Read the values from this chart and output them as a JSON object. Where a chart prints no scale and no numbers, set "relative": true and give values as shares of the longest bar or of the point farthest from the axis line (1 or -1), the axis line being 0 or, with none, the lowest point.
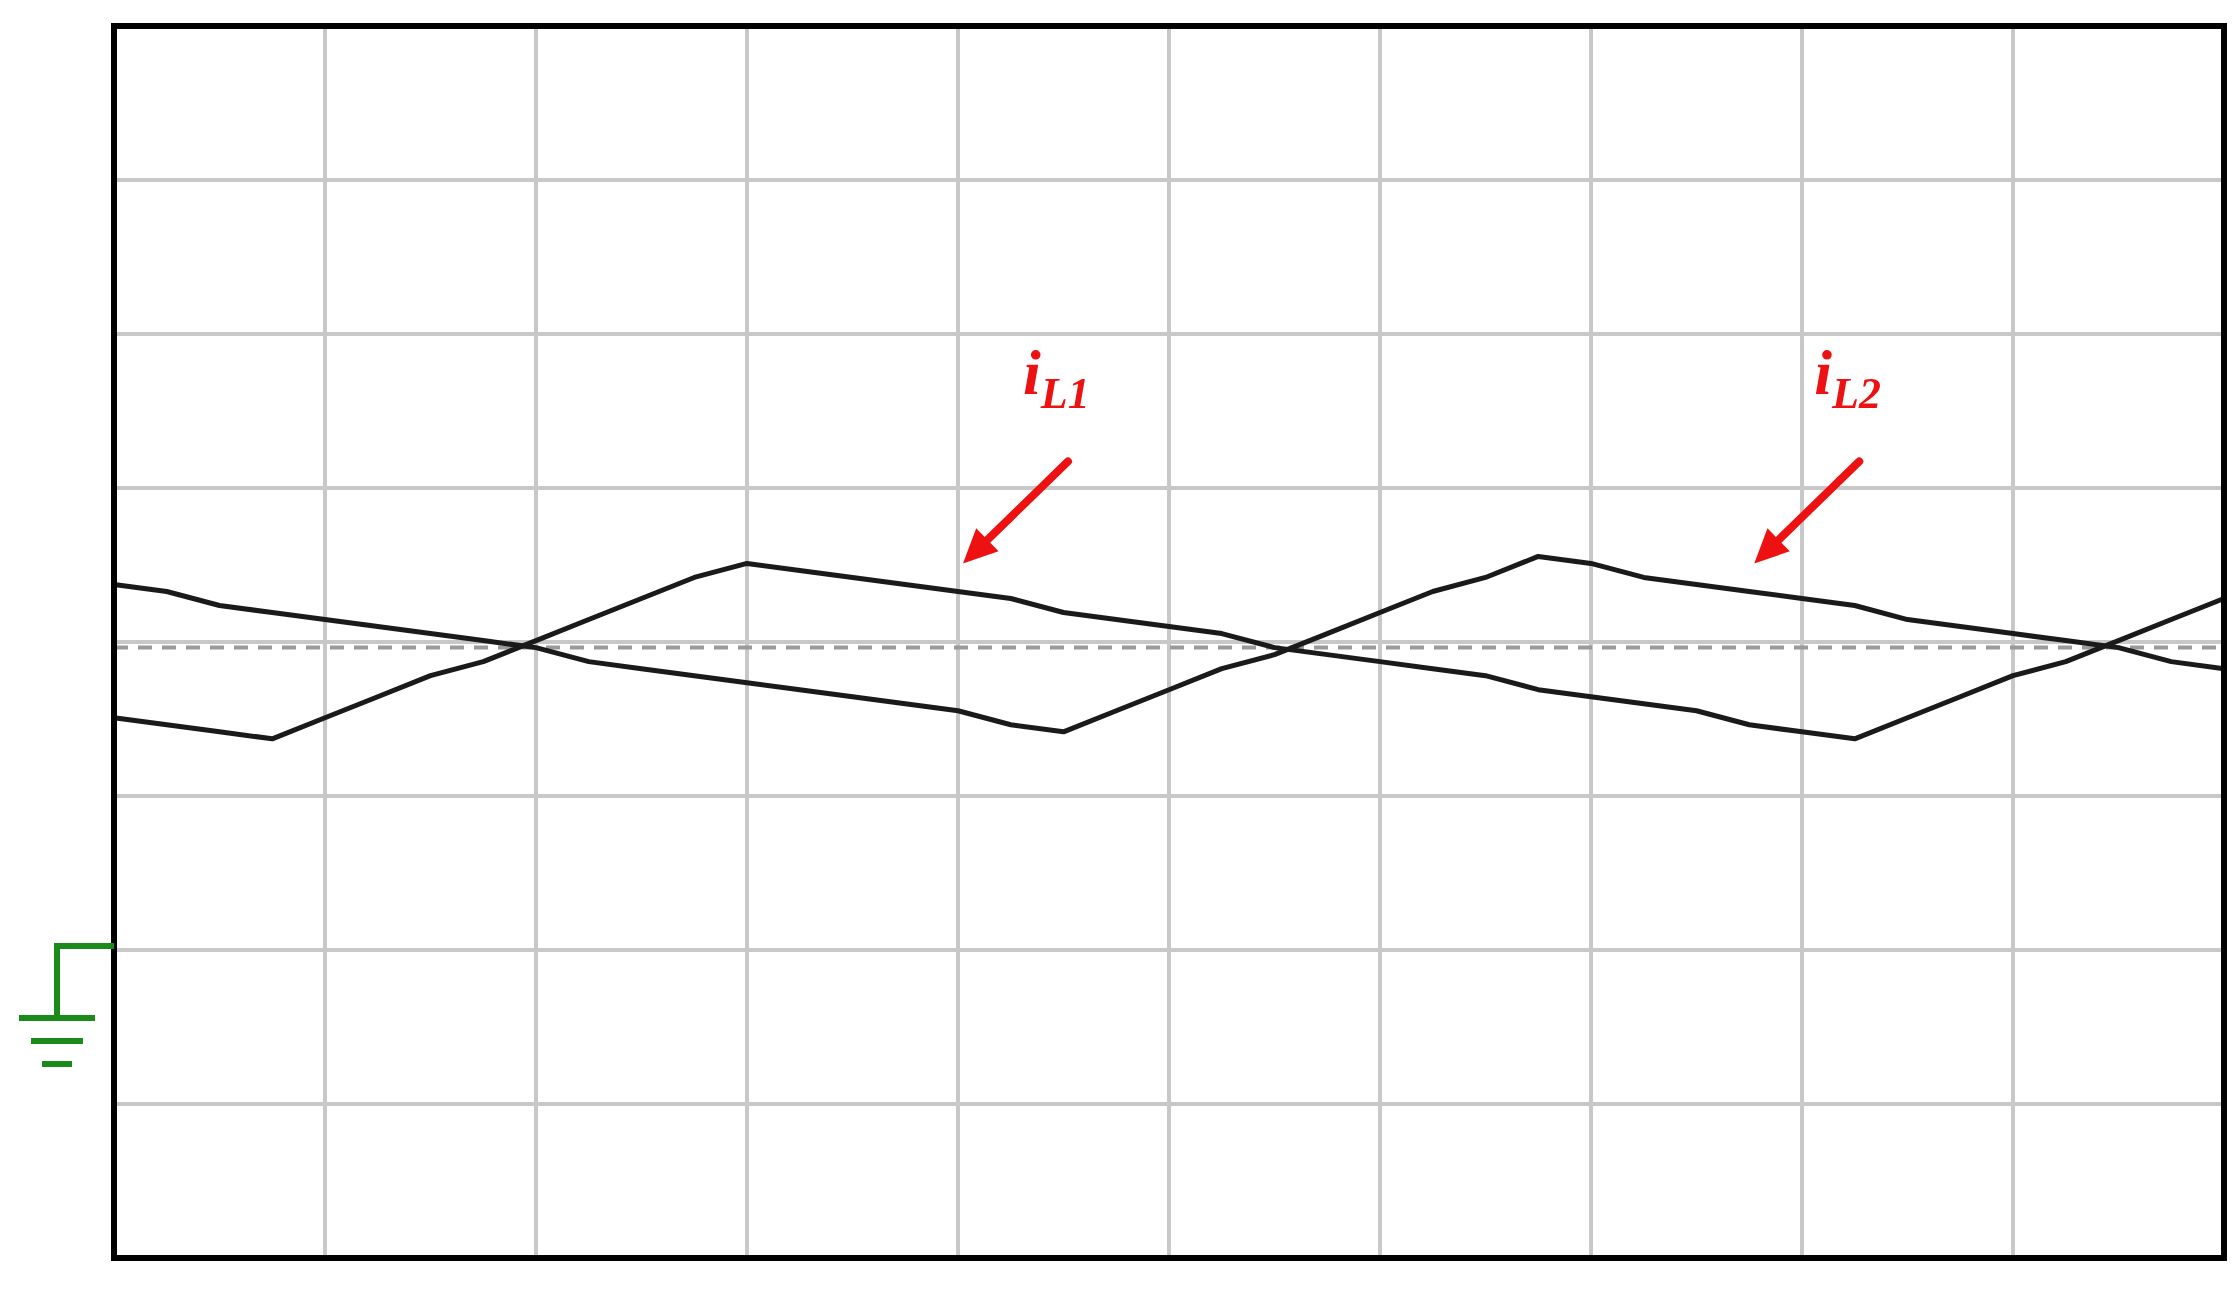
{
  "chart_data": {
    "type": "line",
    "relative": true,
    "grid": true,
    "legend": false,
    "marker": "none",
    "line_style": "solid",
    "categories": [
      null,
      null,
      null,
      null,
      null,
      null,
      null,
      null,
      null,
      null,
      null,
      null,
      null,
      null,
      null,
      null,
      null,
      null,
      null,
      null,
      null,
      null,
      null,
      null,
      null,
      null,
      null,
      null,
      null,
      null,
      null,
      null,
      null,
      null,
      null,
      null,
      null,
      null,
      null,
      null,
      null
    ],
    "series": [
      {
        "name": "i$_{L1}$",
        "color": "#1a1a1a",
        "values": [
          0.77,
          0.76,
          0.75,
          0.74,
          0.77,
          0.8,
          0.83,
          0.85,
          0.88,
          0.91,
          0.94,
          0.97,
          0.99,
          0.98,
          0.97,
          0.96,
          0.95,
          0.94,
          0.92,
          0.91,
          0.9,
          0.89,
          0.87,
          0.86,
          0.85,
          0.84,
          0.83,
          0.81,
          0.8,
          0.79,
          0.78,
          0.76,
          0.75,
          0.74,
          0.77,
          0.8,
          0.83,
          0.85,
          0.88,
          0.91,
          0.94
        ]
      },
      {
        "name": "i$_{L2}$",
        "color": "#1a1a1a",
        "values": [
          0.96,
          0.95,
          0.93,
          0.92,
          0.91,
          0.9,
          0.89,
          0.88,
          0.87,
          0.85,
          0.84,
          0.83,
          0.82,
          0.81,
          0.8,
          0.79,
          0.78,
          0.76,
          0.75,
          0.78,
          0.81,
          0.84,
          0.86,
          0.89,
          0.92,
          0.95,
          0.97,
          1.0,
          0.99,
          0.97,
          0.96,
          0.95,
          0.94,
          0.93,
          0.91,
          0.9,
          0.89,
          0.88,
          0.87,
          0.85,
          0.84
        ]
      }
    ],
    "ref_lines": [
      {
        "axis": "y",
        "value": 0.87,
        "color": "#9a9a9a",
        "line_style": "dashed"
      }
    ]
  }
}
